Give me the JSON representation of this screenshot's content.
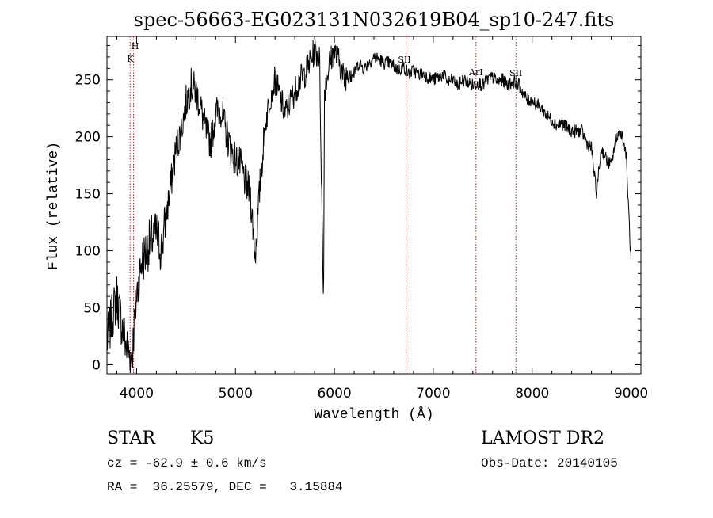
{
  "chart_data": {
    "type": "line",
    "title": "spec-56663-EG023131N032619B04_sp10-247.fits",
    "xlabel": "Wavelength (Å)",
    "ylabel": "Flux (relative)",
    "xlim": [
      3700,
      9100
    ],
    "ylim": [
      -8,
      288
    ],
    "xticks": [
      4000,
      5000,
      6000,
      7000,
      8000,
      9000
    ],
    "yticks": [
      0,
      50,
      100,
      150,
      200,
      250
    ],
    "grid": false,
    "line_color": "#000000",
    "marker_color": "#aa2222",
    "line_markers": [
      {
        "x": 3934,
        "label": "K"
      },
      {
        "x": 3969,
        "label": "H"
      },
      {
        "x": 6724,
        "label": "SII"
      },
      {
        "x": 7432,
        "label": "ArI"
      },
      {
        "x": 7836,
        "label": "SII"
      }
    ],
    "series": [
      {
        "x": [
          3700,
          3760,
          3800,
          3850,
          3900,
          3950,
          4000,
          4050,
          4100,
          4150,
          4200,
          4250,
          4300,
          4350,
          4400,
          4450,
          4500,
          4550,
          4600,
          4650,
          4700,
          4750,
          4800,
          4850,
          4900,
          4950,
          5000,
          5050,
          5100,
          5150,
          5200,
          5250,
          5300,
          5350,
          5400,
          5450,
          5500,
          5550,
          5600,
          5650,
          5700,
          5750,
          5800,
          5850,
          5890,
          5900,
          5950,
          6000,
          6050,
          6100,
          6150,
          6200,
          6250,
          6300,
          6350,
          6400,
          6450,
          6500,
          6550,
          6600,
          6650,
          6700,
          6750,
          6800,
          6850,
          6900,
          6950,
          7000,
          7050,
          7100,
          7150,
          7200,
          7250,
          7300,
          7350,
          7400,
          7450,
          7500,
          7550,
          7600,
          7650,
          7700,
          7750,
          7800,
          7850,
          7900,
          7950,
          8000,
          8050,
          8100,
          8150,
          8200,
          8250,
          8300,
          8350,
          8400,
          8450,
          8500,
          8550,
          8600,
          8650,
          8700,
          8750,
          8800,
          8850,
          8900,
          8950,
          9000
        ],
        "y": [
          20,
          45,
          60,
          35,
          15,
          5,
          60,
          90,
          100,
          110,
          115,
          100,
          130,
          160,
          190,
          205,
          230,
          245,
          240,
          225,
          205,
          195,
          220,
          225,
          205,
          190,
          180,
          175,
          160,
          150,
          95,
          160,
          210,
          235,
          250,
          235,
          220,
          230,
          240,
          250,
          255,
          265,
          275,
          270,
          50,
          240,
          265,
          275,
          265,
          250,
          260,
          255,
          265,
          260,
          265,
          270,
          268,
          265,
          265,
          262,
          258,
          262,
          255,
          258,
          255,
          255,
          252,
          250,
          252,
          255,
          248,
          250,
          245,
          250,
          248,
          245,
          248,
          245,
          250,
          252,
          248,
          250,
          245,
          248,
          248,
          240,
          232,
          232,
          228,
          225,
          218,
          215,
          210,
          212,
          208,
          205,
          205,
          205,
          195,
          190,
          150,
          190,
          180,
          175,
          200,
          205,
          185,
          90
        ]
      }
    ]
  },
  "info": {
    "object_class": "STAR",
    "subclass": "K5",
    "survey": "LAMOST DR2",
    "cz_line": "cz = -62.9 ± 0.6 km/s",
    "obs_date": "Obs-Date: 20140105",
    "coords_line": "RA =  36.25579, DEC =   3.15884"
  }
}
